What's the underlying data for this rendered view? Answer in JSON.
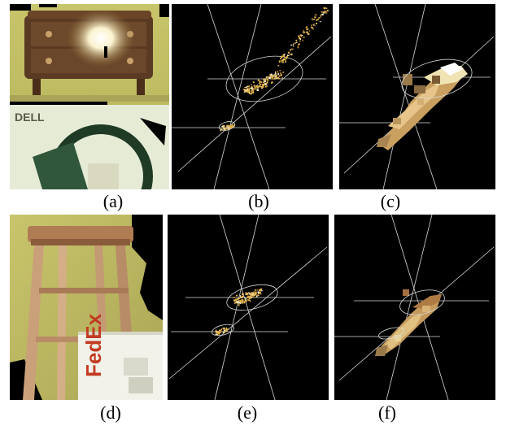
{
  "figure": {
    "panels": [
      {
        "id": "a",
        "label": "(a)",
        "content": "photo",
        "subject": "wooden dresser with bright reflection, DELL box below"
      },
      {
        "id": "b",
        "label": "(b)",
        "content": "point-cloud-with-axes",
        "render": "sparse points"
      },
      {
        "id": "c",
        "label": "(c)",
        "content": "point-cloud-with-axes",
        "render": "surface patches"
      },
      {
        "id": "d",
        "label": "(d)",
        "content": "photo",
        "subject": "wooden stool, FedEx box in front"
      },
      {
        "id": "e",
        "label": "(e)",
        "content": "point-cloud-with-axes",
        "render": "sparse points"
      },
      {
        "id": "f",
        "label": "(f)",
        "content": "point-cloud-with-axes",
        "render": "surface patches"
      }
    ],
    "photo_text": {
      "dell_logo": "DELL",
      "fedex_logo": "FedEx"
    },
    "colors": {
      "background_dark": "#000000",
      "axes_lines": "#d8d8d8",
      "points": "#e2b24a",
      "patches": "#c9a060",
      "photo_yellow": "#c9c46a"
    }
  }
}
